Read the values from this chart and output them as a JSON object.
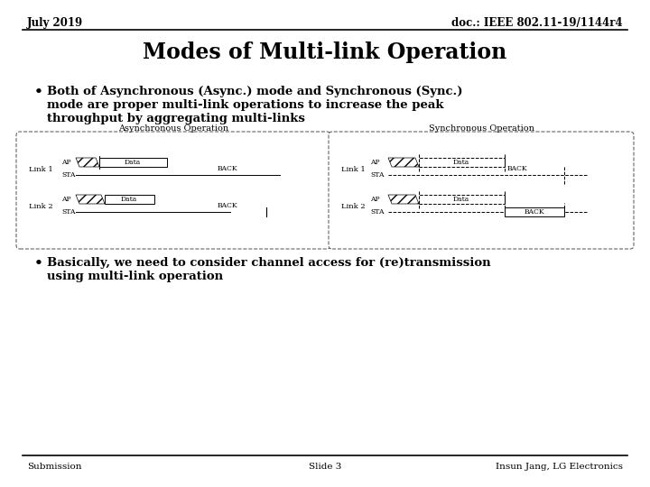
{
  "header_left": "July 2019",
  "header_right": "doc.: IEEE 802.11-19/1144r4",
  "title": "Modes of Multi-link Operation",
  "bullet1_lines": [
    "Both of Asynchronous (Async.) mode and Synchronous (Sync.)",
    "mode are proper multi-link operations to increase the peak",
    "throughput by aggregating multi-links"
  ],
  "bullet2_lines": [
    "Basically, we need to consider channel access for (re)transmission",
    "using multi-link operation"
  ],
  "footer_left": "Submission",
  "footer_center": "Slide 3",
  "footer_right": "Insun Jang, LG Electronics",
  "async_label": "Asynchronous Operation",
  "sync_label": "Synchronous Operation",
  "bg_color": "#ffffff"
}
